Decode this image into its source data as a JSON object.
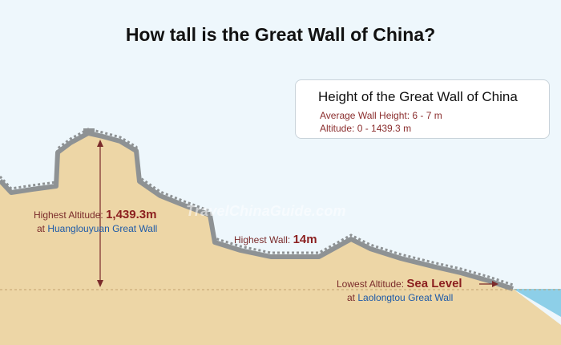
{
  "title": "How tall is the Great Wall of China?",
  "info_box": {
    "title": "Height of the Great Wall of China",
    "average_wall_height": "Average Wall Height: 6 - 7 m",
    "altitude_range": "Altitude: 0 - 1439.3 m"
  },
  "labels": {
    "highest_altitude": {
      "prefix": "Highest Altitude: ",
      "value": "1,439.3m",
      "location_prefix": "at ",
      "location": "Huanglouyuan Great Wall"
    },
    "highest_wall": {
      "prefix": "Highest Wall: ",
      "value": "14m"
    },
    "lowest_altitude": {
      "prefix": "Lowest Altitude: ",
      "value": "Sea Level",
      "location_prefix": "at ",
      "location": "Laolongtou Great Wall"
    }
  },
  "watermark": "TravelChinaGuide.com",
  "colors": {
    "sky": "#eef7fc",
    "ground": "#edd6a6",
    "wall": "#8e9294",
    "sea": "#8dcfe8",
    "arrow": "#7a2b2b",
    "label_red": "#8b1f1f",
    "label_blue": "#1d5aa8"
  }
}
